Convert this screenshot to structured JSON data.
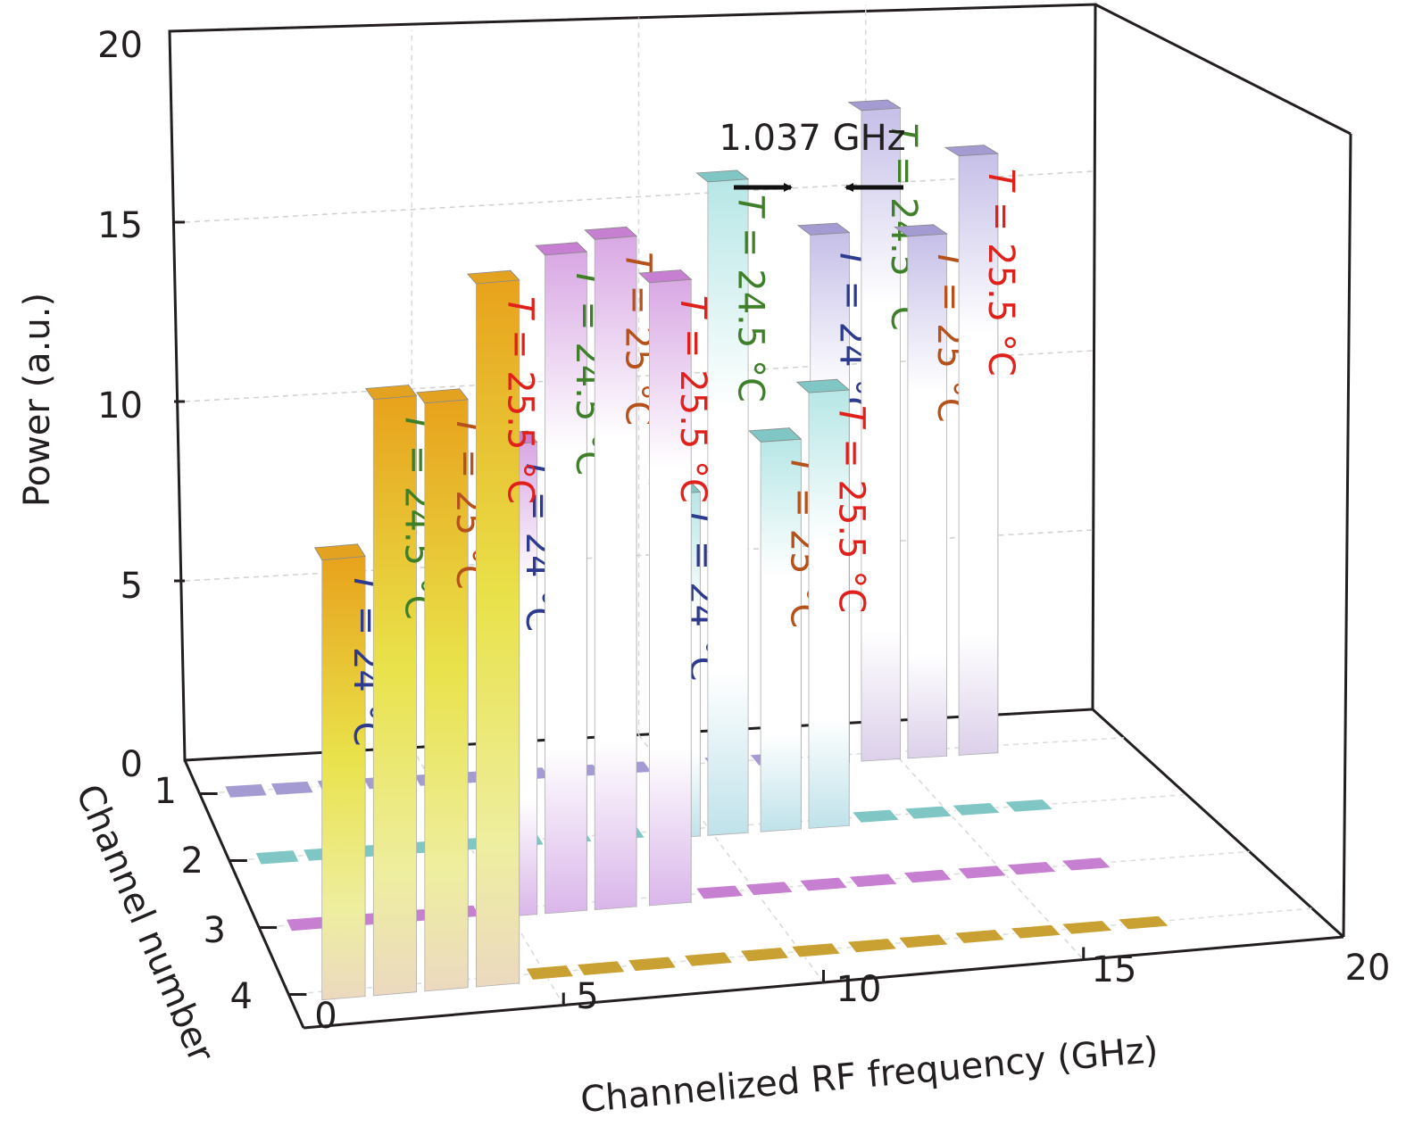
{
  "chart_data": {
    "type": "bar",
    "subtype": "3d-bar",
    "title": "",
    "xlabel": "Channelized RF frequency (GHz)",
    "ylabel": "Power (a.u.)",
    "zlabel": "Channel number",
    "xlim": [
      0,
      20
    ],
    "ylim": [
      0,
      20
    ],
    "x_ticks": [
      "0",
      "5",
      "10",
      "15",
      "20"
    ],
    "y_ticks": [
      "0",
      "5",
      "10",
      "15",
      "20"
    ],
    "z_ticks": [
      "1",
      "2",
      "3",
      "4"
    ],
    "grid": true,
    "annotation": {
      "text": "1.037 GHz",
      "target": "channel spacing between adjacent bars in channel 2"
    },
    "temperature_colors": {
      "T = 24 °C": "#2e3a8f",
      "T = 24.5 °C": "#3f7f2a",
      "T = 25 °C": "#b5521c",
      "T = 25.5 °C": "#e0201b"
    },
    "series": [
      {
        "name": "Channel 4",
        "channel": 4,
        "color": "#e3a21f",
        "bars": [
          {
            "label": "T = 24 °C",
            "temperature": 24,
            "frequency": 1.0,
            "power": 10.7
          },
          {
            "label": "T = 24.5 °C",
            "temperature": 24.5,
            "frequency": 2.0,
            "power": 14.5
          },
          {
            "label": "T = 25 °C",
            "temperature": 25,
            "frequency": 3.0,
            "power": 14.3
          },
          {
            "label": "T = 25.5 °C",
            "temperature": 25.5,
            "frequency": 4.0,
            "power": 17.1
          }
        ]
      },
      {
        "name": "Channel 3",
        "channel": 3,
        "color": "#c77fd1",
        "bars": [
          {
            "label": "T = 24 °C",
            "temperature": 24,
            "frequency": 5.1,
            "power": 11.9
          },
          {
            "label": "T = 24.5 °C",
            "temperature": 24.5,
            "frequency": 6.1,
            "power": 16.6
          },
          {
            "label": "T = 25 °C",
            "temperature": 25,
            "frequency": 7.1,
            "power": 16.9
          },
          {
            "label": "T = 25.5 °C",
            "temperature": 25.5,
            "frequency": 8.2,
            "power": 15.7
          }
        ]
      },
      {
        "name": "Channel 2",
        "channel": 2,
        "color": "#7fc6c4",
        "bars": [
          {
            "label": "T = 24 °C",
            "temperature": 24,
            "frequency": 9.3,
            "power": 9.0
          },
          {
            "label": "T = 24.5 °C",
            "temperature": 24.5,
            "frequency": 10.3,
            "power": 17.1
          },
          {
            "label": "T = 25 °C",
            "temperature": 25,
            "frequency": 11.4,
            "power": 10.2
          },
          {
            "label": "T = 25.5 °C",
            "temperature": 25.5,
            "frequency": 12.4,
            "power": 11.4
          }
        ]
      },
      {
        "name": "Channel 1",
        "channel": 1,
        "color": "#a59bd3",
        "bars": [
          {
            "label": "T = 24 °C",
            "temperature": 24,
            "frequency": 13.5,
            "power": 14.4
          },
          {
            "label": "T = 24.5 °C",
            "temperature": 24.5,
            "frequency": 14.6,
            "power": 17.7
          },
          {
            "label": "T = 25 °C",
            "temperature": 25,
            "frequency": 15.6,
            "power": 14.2
          },
          {
            "label": "T = 25.5 °C",
            "temperature": 25.5,
            "frequency": 16.7,
            "power": 16.3
          }
        ]
      }
    ],
    "floor_markers": [
      {
        "channel": 1,
        "color": "#a59bd3",
        "frequencies": [
          1.0,
          2.0,
          3.0,
          4.0,
          5.1,
          6.1,
          7.1,
          8.2,
          9.3,
          10.3,
          11.4,
          12.4
        ]
      },
      {
        "channel": 2,
        "color": "#7fc6c4",
        "frequencies": [
          1.0,
          2.0,
          3.0,
          4.0,
          5.1,
          6.1,
          7.1,
          8.2,
          13.5,
          14.6,
          15.6,
          16.7
        ]
      },
      {
        "channel": 3,
        "color": "#c77fd1",
        "frequencies": [
          1.0,
          2.0,
          3.0,
          4.0,
          9.3,
          10.3,
          11.4,
          12.4,
          13.5,
          14.6,
          15.6,
          16.7
        ]
      },
      {
        "channel": 4,
        "color": "#c9a032",
        "frequencies": [
          5.1,
          6.1,
          7.1,
          8.2,
          9.3,
          10.3,
          11.4,
          12.4,
          13.5,
          14.6,
          15.6,
          16.7
        ]
      }
    ]
  }
}
